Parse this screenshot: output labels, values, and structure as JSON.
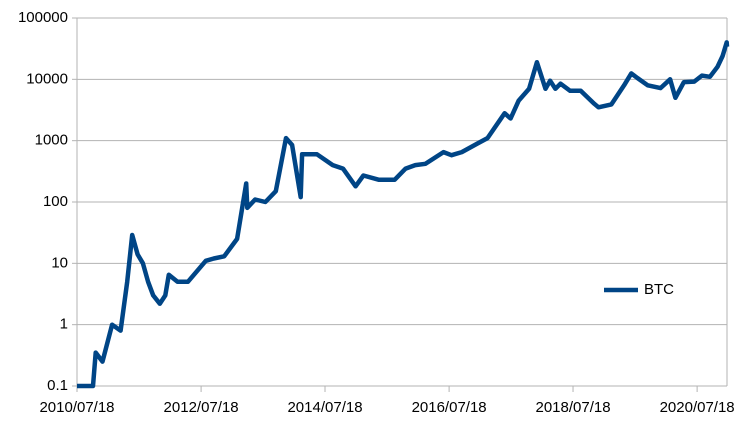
{
  "chart_data": {
    "type": "line",
    "log_y": true,
    "grid": true,
    "legend": "right",
    "x": [
      "2010/07/18",
      "2010/10/20",
      "2010/11/05",
      "2010/12/15",
      "2011/02/10",
      "2011/04/01",
      "2011/05/10",
      "2011/06/08",
      "2011/07/10",
      "2011/08/10",
      "2011/09/10",
      "2011/10/10",
      "2011/11/18",
      "2011/12/20",
      "2012/01/10",
      "2012/03/01",
      "2012/05/01",
      "2012/08/15",
      "2012/10/01",
      "2012/12/01",
      "2013/02/15",
      "2013/04/10",
      "2013/04/16",
      "2013/06/01",
      "2013/08/01",
      "2013/10/01",
      "2013/11/30",
      "2014/01/05",
      "2014/02/25",
      "2014/03/05",
      "2014/06/01",
      "2014/09/01",
      "2014/11/01",
      "2015/01/14",
      "2015/03/01",
      "2015/06/01",
      "2015/09/01",
      "2015/11/05",
      "2016/01/01",
      "2016/03/01",
      "2016/06/15",
      "2016/08/01",
      "2016/10/01",
      "2017/01/01",
      "2017/03/01",
      "2017/05/15",
      "2017/06/10",
      "2017/07/15",
      "2017/09/01",
      "2017/11/01",
      "2017/12/17",
      "2018/02/06",
      "2018/03/05",
      "2018/04/05",
      "2018/05/05",
      "2018/07/01",
      "2018/09/01",
      "2018/11/20",
      "2018/12/15",
      "2019/03/01",
      "2019/05/15",
      "2019/06/26",
      "2019/08/01",
      "2019/10/01",
      "2019/12/15",
      "2020/02/10",
      "2020/03/12",
      "2020/05/01",
      "2020/07/01",
      "2020/08/15",
      "2020/10/01",
      "2020/11/15",
      "2020/12/15",
      "2021/01/08",
      "2021/01/10"
    ],
    "series": [
      {
        "name": "BTC",
        "color": "#004586",
        "values": [
          0.1,
          0.1,
          0.35,
          0.25,
          1,
          0.8,
          5,
          29,
          14,
          10,
          5,
          3,
          2.2,
          3,
          6.5,
          5,
          5,
          11,
          12,
          13,
          25,
          200,
          80,
          110,
          100,
          150,
          1100,
          850,
          120,
          600,
          600,
          400,
          350,
          180,
          270,
          230,
          230,
          350,
          400,
          420,
          650,
          580,
          650,
          900,
          1100,
          2200,
          2800,
          2300,
          4500,
          7000,
          19000,
          7000,
          9500,
          7000,
          8500,
          6500,
          6500,
          4000,
          3500,
          3900,
          8000,
          12500,
          10500,
          8000,
          7200,
          10000,
          5000,
          9000,
          9200,
          11500,
          11000,
          16000,
          24000,
          40000,
          34000
        ]
      }
    ],
    "xlim": [
      "2010/07/18",
      "2021/01/10"
    ],
    "xticks": [
      "2010/07/18",
      "2012/07/18",
      "2014/07/18",
      "2016/07/18",
      "2018/07/18",
      "2020/07/18"
    ],
    "ylim": [
      0.1,
      100000
    ],
    "yticks": [
      0.1,
      1,
      10,
      100,
      1000,
      10000,
      100000
    ]
  }
}
